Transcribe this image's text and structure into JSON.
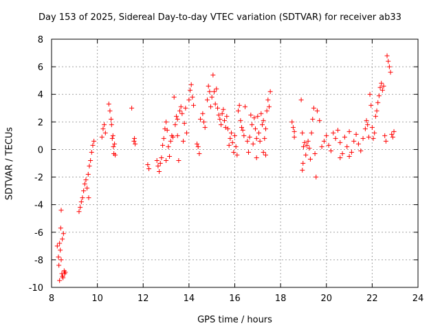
{
  "chart_data": {
    "type": "scatter",
    "title": "Day 153 of 2025, Sidereal Day-to-day VTEC variation (SDTVAR) for receiver ab33",
    "xlabel": "GPS time / hours",
    "ylabel": "SDTVAR / TECUs",
    "xlim": [
      8,
      24
    ],
    "ylim": [
      -10,
      8
    ],
    "xticks": [
      8,
      10,
      12,
      14,
      16,
      18,
      20,
      22,
      24
    ],
    "yticks": [
      -10,
      -8,
      -6,
      -4,
      -2,
      0,
      2,
      4,
      6,
      8
    ],
    "grid": true,
    "marker": "+",
    "color": "#ff0000",
    "series": [
      {
        "name": "SDTVAR",
        "points": [
          [
            8.25,
            -7.0
          ],
          [
            8.3,
            -7.8
          ],
          [
            8.32,
            -8.4
          ],
          [
            8.35,
            -6.8
          ],
          [
            8.38,
            -7.3
          ],
          [
            8.4,
            -5.7
          ],
          [
            8.42,
            -8.0
          ],
          [
            8.45,
            -9.0
          ],
          [
            8.47,
            -6.5
          ],
          [
            8.5,
            -9.3
          ],
          [
            8.52,
            -6.1
          ],
          [
            8.55,
            -8.8
          ],
          [
            8.57,
            -9.0
          ],
          [
            8.6,
            -8.9
          ],
          [
            8.42,
            -4.4
          ],
          [
            8.35,
            -9.5
          ],
          [
            8.48,
            -9.2
          ],
          [
            9.2,
            -4.5
          ],
          [
            9.25,
            -4.2
          ],
          [
            9.3,
            -3.8
          ],
          [
            9.35,
            -3.5
          ],
          [
            9.4,
            -3.0
          ],
          [
            9.45,
            -2.5
          ],
          [
            9.5,
            -2.2
          ],
          [
            9.55,
            -2.8
          ],
          [
            9.6,
            -1.8
          ],
          [
            9.65,
            -1.2
          ],
          [
            9.7,
            -0.8
          ],
          [
            9.75,
            -0.2
          ],
          [
            9.8,
            0.3
          ],
          [
            9.85,
            0.6
          ],
          [
            9.62,
            -3.5
          ],
          [
            10.2,
            0.9
          ],
          [
            10.25,
            1.5
          ],
          [
            10.3,
            1.8
          ],
          [
            10.35,
            1.2
          ],
          [
            10.5,
            3.3
          ],
          [
            10.55,
            2.8
          ],
          [
            10.6,
            2.2
          ],
          [
            10.62,
            1.8
          ],
          [
            10.65,
            0.8
          ],
          [
            10.7,
            0.2
          ],
          [
            10.72,
            -0.3
          ],
          [
            10.75,
            0.4
          ],
          [
            10.78,
            -0.4
          ],
          [
            10.68,
            1.0
          ],
          [
            11.5,
            3.0
          ],
          [
            11.6,
            0.6
          ],
          [
            11.62,
            0.8
          ],
          [
            11.65,
            0.4
          ],
          [
            12.2,
            -1.1
          ],
          [
            12.25,
            -1.4
          ],
          [
            12.6,
            -0.8
          ],
          [
            12.65,
            -1.2
          ],
          [
            12.7,
            -1.6
          ],
          [
            12.75,
            -1.0
          ],
          [
            12.8,
            -0.6
          ],
          [
            12.85,
            0.3
          ],
          [
            12.9,
            0.8
          ],
          [
            12.95,
            1.5
          ],
          [
            13.0,
            2.0
          ],
          [
            13.05,
            1.4
          ],
          [
            13.1,
            0.2
          ],
          [
            13.15,
            -0.5
          ],
          [
            13.2,
            0.6
          ],
          [
            13.25,
            1.0
          ],
          [
            13.3,
            0.9
          ],
          [
            13.35,
            3.8
          ],
          [
            13.4,
            1.8
          ],
          [
            13.45,
            2.4
          ],
          [
            13.5,
            1.0
          ],
          [
            13.55,
            -0.8
          ],
          [
            13.6,
            2.8
          ],
          [
            13.65,
            3.1
          ],
          [
            13.7,
            2.6
          ],
          [
            13.75,
            0.6
          ],
          [
            13.8,
            1.9
          ],
          [
            13.85,
            3.0
          ],
          [
            13.9,
            1.2
          ],
          [
            13.0,
            -0.8
          ],
          [
            13.5,
            2.2
          ],
          [
            14.0,
            3.6
          ],
          [
            14.05,
            4.3
          ],
          [
            14.1,
            4.7
          ],
          [
            14.15,
            3.8
          ],
          [
            14.2,
            3.2
          ],
          [
            14.35,
            0.4
          ],
          [
            14.4,
            0.2
          ],
          [
            14.45,
            -0.3
          ],
          [
            14.5,
            2.2
          ],
          [
            14.6,
            2.6
          ],
          [
            14.65,
            2.0
          ],
          [
            14.7,
            1.6
          ],
          [
            14.8,
            3.6
          ],
          [
            14.85,
            4.6
          ],
          [
            14.9,
            4.2
          ],
          [
            14.95,
            3.1
          ],
          [
            15.0,
            3.8
          ],
          [
            15.05,
            5.4
          ],
          [
            15.1,
            4.2
          ],
          [
            15.15,
            3.3
          ],
          [
            15.2,
            4.4
          ],
          [
            15.25,
            3.0
          ],
          [
            15.3,
            2.5
          ],
          [
            15.35,
            2.2
          ],
          [
            15.4,
            1.8
          ],
          [
            15.45,
            2.6
          ],
          [
            15.5,
            2.9
          ],
          [
            15.55,
            2.1
          ],
          [
            15.6,
            1.6
          ],
          [
            15.65,
            2.4
          ],
          [
            15.7,
            1.5
          ],
          [
            15.75,
            0.3
          ],
          [
            15.8,
            0.8
          ],
          [
            15.85,
            1.2
          ],
          [
            15.9,
            0.5
          ],
          [
            15.95,
            -0.2
          ],
          [
            16.0,
            1.0
          ],
          [
            16.05,
            0.2
          ],
          [
            16.1,
            -0.4
          ],
          [
            16.15,
            2.8
          ],
          [
            16.2,
            3.2
          ],
          [
            16.25,
            2.1
          ],
          [
            16.3,
            1.6
          ],
          [
            16.35,
            1.4
          ],
          [
            16.4,
            1.0
          ],
          [
            16.45,
            3.1
          ],
          [
            16.55,
            0.6
          ],
          [
            16.6,
            -0.2
          ],
          [
            16.65,
            0.9
          ],
          [
            16.7,
            2.5
          ],
          [
            16.75,
            1.8
          ],
          [
            16.8,
            0.4
          ],
          [
            16.85,
            2.3
          ],
          [
            16.9,
            1.5
          ],
          [
            16.95,
            0.8
          ],
          [
            17.0,
            2.4
          ],
          [
            17.05,
            1.2
          ],
          [
            17.1,
            0.6
          ],
          [
            17.15,
            2.6
          ],
          [
            17.2,
            1.8
          ],
          [
            17.25,
            2.1
          ],
          [
            17.3,
            0.8
          ],
          [
            17.35,
            1.5
          ],
          [
            17.4,
            2.8
          ],
          [
            17.45,
            3.6
          ],
          [
            17.5,
            3.1
          ],
          [
            17.55,
            4.2
          ],
          [
            17.25,
            -0.2
          ],
          [
            16.95,
            -0.6
          ],
          [
            17.35,
            -0.4
          ],
          [
            18.5,
            2.0
          ],
          [
            18.55,
            1.6
          ],
          [
            18.6,
            1.3
          ],
          [
            18.6,
            0.9
          ],
          [
            18.9,
            3.6
          ],
          [
            18.95,
            1.2
          ],
          [
            19.0,
            0.2
          ],
          [
            19.05,
            0.5
          ],
          [
            19.1,
            -0.4
          ],
          [
            19.15,
            0.3
          ],
          [
            19.2,
            0.6
          ],
          [
            19.25,
            0.1
          ],
          [
            19.3,
            -0.7
          ],
          [
            19.35,
            1.2
          ],
          [
            19.4,
            2.2
          ],
          [
            19.45,
            3.0
          ],
          [
            19.5,
            -0.3
          ],
          [
            19.55,
            -2.0
          ],
          [
            19.6,
            2.8
          ],
          [
            19.7,
            2.1
          ],
          [
            18.95,
            -1.5
          ],
          [
            18.98,
            -1.0
          ],
          [
            19.8,
            0.2
          ],
          [
            19.9,
            0.6
          ],
          [
            20.0,
            1.0
          ],
          [
            20.1,
            0.3
          ],
          [
            20.2,
            -0.1
          ],
          [
            20.3,
            1.2
          ],
          [
            20.4,
            0.8
          ],
          [
            20.5,
            1.4
          ],
          [
            20.6,
            0.5
          ],
          [
            20.7,
            -0.3
          ],
          [
            20.8,
            0.9
          ],
          [
            20.9,
            0.2
          ],
          [
            21.0,
            1.3
          ],
          [
            21.1,
            -0.2
          ],
          [
            21.2,
            0.6
          ],
          [
            21.3,
            1.1
          ],
          [
            21.4,
            0.4
          ],
          [
            21.5,
            -0.1
          ],
          [
            21.6,
            0.8
          ],
          [
            21.7,
            1.5
          ],
          [
            21.75,
            2.1
          ],
          [
            21.8,
            1.8
          ],
          [
            21.85,
            0.9
          ],
          [
            21.9,
            4.0
          ],
          [
            21.95,
            3.2
          ],
          [
            22.0,
            1.6
          ],
          [
            22.05,
            0.8
          ],
          [
            22.1,
            1.2
          ],
          [
            22.15,
            2.4
          ],
          [
            22.2,
            2.8
          ],
          [
            22.25,
            3.4
          ],
          [
            22.3,
            3.9
          ],
          [
            22.35,
            4.5
          ],
          [
            22.4,
            4.8
          ],
          [
            22.45,
            4.3
          ],
          [
            22.5,
            4.6
          ],
          [
            22.55,
            1.0
          ],
          [
            22.6,
            0.6
          ],
          [
            22.65,
            6.8
          ],
          [
            22.7,
            6.4
          ],
          [
            22.75,
            6.0
          ],
          [
            22.8,
            5.6
          ],
          [
            22.85,
            1.1
          ],
          [
            22.9,
            0.9
          ],
          [
            22.95,
            1.3
          ],
          [
            21.0,
            -0.5
          ],
          [
            20.6,
            -0.6
          ]
        ]
      }
    ]
  }
}
